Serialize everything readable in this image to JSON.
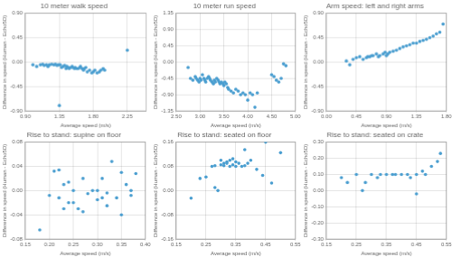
{
  "chart_data": [
    {
      "type": "scatter",
      "title": "10 meter walk speed",
      "xlabel": "Average speed (m/s)",
      "ylabel": "Difference in speed (Human - Echo5D)",
      "color": "#4A9ED0",
      "grid": true,
      "xlim": [
        0.9,
        2.5
      ],
      "ylim": [
        -0.9,
        0.9
      ],
      "xticks": [
        {
          "value": 0.9,
          "label": "0.90"
        },
        1.35,
        {
          "value": 1.8,
          "label": "1.80"
        },
        2.25
      ],
      "yticks": [
        {
          "value": -0.9,
          "label": "-0.90"
        },
        -0.45,
        {
          "value": 0,
          "label": "0.00"
        },
        0.45,
        {
          "value": 0.9,
          "label": "0.90"
        }
      ],
      "x": [
        1.0,
        1.05,
        1.1,
        1.13,
        1.15,
        1.18,
        1.2,
        1.22,
        1.25,
        1.28,
        1.3,
        1.32,
        1.34,
        1.36,
        1.38,
        1.4,
        1.42,
        1.44,
        1.45,
        1.47,
        1.48,
        1.5,
        1.52,
        1.53,
        1.55,
        1.56,
        1.58,
        1.6,
        1.62,
        1.63,
        1.65,
        1.67,
        1.68,
        1.7,
        1.72,
        1.75,
        1.78,
        1.8,
        1.82,
        1.85,
        1.88,
        1.9,
        1.93,
        1.95,
        1.35,
        2.25
      ],
      "values": [
        -0.05,
        -0.08,
        -0.05,
        -0.04,
        -0.06,
        -0.05,
        -0.08,
        -0.05,
        -0.04,
        -0.05,
        -0.04,
        -0.06,
        -0.05,
        -0.05,
        -0.1,
        -0.08,
        -0.06,
        -0.12,
        -0.08,
        -0.1,
        -0.12,
        -0.1,
        -0.08,
        -0.1,
        -0.12,
        -0.1,
        -0.12,
        -0.12,
        -0.1,
        -0.08,
        -0.12,
        -0.15,
        -0.12,
        -0.1,
        -0.18,
        -0.15,
        -0.2,
        -0.18,
        -0.15,
        -0.2,
        -0.18,
        -0.15,
        -0.12,
        -0.15,
        -0.8,
        0.22
      ]
    },
    {
      "type": "scatter",
      "title": "10 meter run speed",
      "xlabel": "Average speed (m/s)",
      "ylabel": "Difference in speed (Human - Echo5D)",
      "color": "#4A9ED0",
      "grid": true,
      "xlim": [
        2.5,
        5.0
      ],
      "ylim": [
        -1.35,
        1.35
      ],
      "xticks": [
        {
          "value": 2.5,
          "label": "2.50"
        },
        {
          "value": 3,
          "label": "3.00"
        },
        {
          "value": 3.5,
          "label": "3.50"
        },
        {
          "value": 4,
          "label": "4.00"
        },
        {
          "value": 4.5,
          "label": "4.50"
        },
        {
          "value": 5,
          "label": "5.00"
        }
      ],
      "yticks": [
        -1.35,
        {
          "value": -0.9,
          "label": "-0.90"
        },
        -0.45,
        {
          "value": 0,
          "label": "0.00"
        },
        0.45,
        {
          "value": 0.9,
          "label": "0.90"
        },
        1.35
      ],
      "x": [
        2.75,
        2.8,
        2.85,
        2.9,
        2.92,
        2.95,
        2.98,
        3.0,
        3.02,
        3.05,
        3.08,
        3.1,
        3.12,
        3.15,
        3.18,
        3.2,
        3.22,
        3.25,
        3.28,
        3.3,
        3.32,
        3.35,
        3.38,
        3.4,
        3.42,
        3.45,
        3.48,
        3.5,
        3.52,
        3.55,
        3.58,
        3.6,
        3.65,
        3.7,
        3.75,
        3.8,
        3.85,
        3.9,
        3.95,
        4.0,
        4.05,
        4.1,
        4.15,
        4.2,
        4.5,
        4.55,
        4.6,
        4.65,
        4.7,
        4.75,
        4.8
      ],
      "values": [
        -0.15,
        -0.45,
        -0.5,
        -0.4,
        -0.45,
        -0.5,
        -0.55,
        -0.45,
        -0.5,
        -0.35,
        -0.45,
        -0.5,
        -0.55,
        -0.45,
        -0.4,
        -0.45,
        -0.5,
        -0.55,
        -0.6,
        -0.5,
        -0.55,
        -0.45,
        -0.5,
        -0.55,
        -0.6,
        -0.55,
        -0.6,
        -0.65,
        -0.55,
        -0.6,
        -0.7,
        -0.75,
        -0.8,
        -0.85,
        -0.75,
        -0.8,
        -0.9,
        -0.85,
        -0.9,
        -1.05,
        -0.85,
        -0.9,
        -1.25,
        -0.85,
        -0.35,
        -0.4,
        -0.5,
        -0.55,
        -0.45,
        -0.05,
        -0.1
      ]
    },
    {
      "type": "scatter",
      "title": "Arm speed: left and right arms",
      "xlabel": "Average speed (m/s)",
      "ylabel": "Difference in speed (Human - Echo5D)",
      "color": "#4A9ED0",
      "grid": true,
      "xlim": [
        0.0,
        1.8
      ],
      "ylim": [
        -0.9,
        0.9
      ],
      "xticks": [
        {
          "value": 0,
          "label": "0.00"
        },
        0.45,
        {
          "value": 0.9,
          "label": "0.90"
        },
        1.35,
        {
          "value": 1.8,
          "label": "1.80"
        }
      ],
      "yticks": [
        {
          "value": -0.9,
          "label": "-0.90"
        },
        -0.45,
        {
          "value": 0,
          "label": "0.00"
        },
        0.45,
        {
          "value": 0.9,
          "label": "0.90"
        }
      ],
      "x": [
        0.3,
        0.35,
        0.4,
        0.45,
        0.5,
        0.55,
        0.6,
        0.62,
        0.65,
        0.68,
        0.7,
        0.75,
        0.78,
        0.8,
        0.85,
        0.88,
        0.9,
        0.92,
        0.95,
        1.0,
        1.05,
        1.1,
        1.15,
        1.2,
        1.25,
        1.3,
        1.35,
        1.4,
        1.45,
        1.5,
        1.55,
        1.6,
        1.65,
        1.7,
        1.75
      ],
      "values": [
        0.02,
        -0.05,
        0.05,
        0.08,
        0.1,
        0.05,
        0.08,
        0.1,
        0.1,
        0.12,
        0.12,
        0.15,
        0.1,
        0.12,
        0.15,
        0.18,
        0.12,
        0.15,
        0.18,
        0.2,
        0.22,
        0.25,
        0.28,
        0.3,
        0.32,
        0.35,
        0.35,
        0.38,
        0.4,
        0.42,
        0.45,
        0.48,
        0.52,
        0.55,
        0.7
      ]
    },
    {
      "type": "scatter",
      "title": "Rise to stand: supine on floor",
      "xlabel": "Average speed (m/s)",
      "ylabel": "Difference in speed (Human - Echo5D)",
      "color": "#4A9ED0",
      "grid": true,
      "xlim": [
        0.15,
        0.4
      ],
      "ylim": [
        -0.08,
        0.08
      ],
      "xticks": [
        0.15,
        {
          "value": 0.2,
          "label": "0.20"
        },
        0.25,
        {
          "value": 0.3,
          "label": "0.30"
        },
        0.35,
        {
          "value": 0.4,
          "label": "0.40"
        }
      ],
      "yticks": [
        -0.08,
        -0.04,
        {
          "value": 0,
          "label": "0.00"
        },
        0.04,
        0.08
      ],
      "x": [
        0.18,
        0.2,
        0.21,
        0.22,
        0.22,
        0.23,
        0.23,
        0.24,
        0.24,
        0.25,
        0.25,
        0.26,
        0.27,
        0.27,
        0.28,
        0.29,
        0.3,
        0.3,
        0.31,
        0.31,
        0.32,
        0.32,
        0.33,
        0.34,
        0.35,
        0.35,
        0.36,
        0.37,
        0.37,
        0.38
      ],
      "values": [
        -0.065,
        -0.008,
        0.032,
        0.034,
        -0.012,
        0.01,
        -0.03,
        -0.02,
        0.014,
        0.0,
        -0.02,
        -0.03,
        0.02,
        -0.035,
        -0.005,
        0.0,
        -0.015,
        0.0,
        0.02,
        -0.012,
        -0.004,
        -0.025,
        0.048,
        -0.012,
        0.03,
        -0.04,
        0.01,
        0.0,
        -0.008,
        0.028
      ]
    },
    {
      "type": "scatter",
      "title": "Rise to stand: seated on floor",
      "xlabel": "Average speed (m/s)",
      "ylabel": "Difference in speed (Human - Echo5D)",
      "color": "#4A9ED0",
      "grid": true,
      "xlim": [
        0.15,
        0.55
      ],
      "ylim": [
        -0.16,
        0.16
      ],
      "xticks": [
        0.15,
        0.25,
        0.35,
        0.45,
        0.55
      ],
      "yticks": [
        -0.16,
        -0.08,
        {
          "value": 0,
          "label": "0.00"
        },
        0.08,
        0.16
      ],
      "x": [
        0.2,
        0.23,
        0.25,
        0.27,
        0.28,
        0.28,
        0.29,
        0.3,
        0.3,
        0.31,
        0.31,
        0.32,
        0.32,
        0.33,
        0.33,
        0.34,
        0.34,
        0.35,
        0.35,
        0.36,
        0.37,
        0.38,
        0.38,
        0.39,
        0.4,
        0.42,
        0.44,
        0.45,
        0.47,
        0.5
      ],
      "values": [
        -0.025,
        0.04,
        0.045,
        0.08,
        0.082,
        0.01,
        0.0,
        0.085,
        0.1,
        0.09,
        0.082,
        0.095,
        0.09,
        0.1,
        0.08,
        0.105,
        0.085,
        0.08,
        0.095,
        0.09,
        0.08,
        0.082,
        0.135,
        0.09,
        0.1,
        0.07,
        0.05,
        0.16,
        0.025,
        0.125
      ]
    },
    {
      "type": "scatter",
      "title": "Rise to stand: seated on crate",
      "xlabel": "Average speed (m/s)",
      "ylabel": "Difference in speed (Human - Echo5D)",
      "color": "#4A9ED0",
      "grid": true,
      "xlim": [
        0.15,
        0.55
      ],
      "ylim": [
        -0.3,
        0.3
      ],
      "xticks": [
        0.15,
        0.25,
        0.35,
        0.45,
        0.55
      ],
      "yticks": [
        {
          "value": -0.3,
          "label": "-0.30"
        },
        {
          "value": -0.2,
          "label": "-0.20"
        },
        {
          "value": -0.1,
          "label": "-0.10"
        },
        {
          "value": 0,
          "label": "0.00"
        },
        {
          "value": 0.1,
          "label": "0.10"
        },
        {
          "value": 0.2,
          "label": "0.20"
        },
        {
          "value": 0.3,
          "label": "0.30"
        }
      ],
      "x": [
        0.2,
        0.22,
        0.25,
        0.27,
        0.28,
        0.3,
        0.32,
        0.33,
        0.35,
        0.37,
        0.38,
        0.4,
        0.42,
        0.43,
        0.45,
        0.45,
        0.47,
        0.48,
        0.5,
        0.52,
        0.53
      ],
      "values": [
        0.08,
        0.05,
        0.1,
        0.0,
        0.05,
        0.1,
        0.08,
        0.1,
        0.1,
        0.1,
        0.1,
        0.1,
        0.1,
        0.08,
        0.1,
        -0.02,
        0.12,
        0.1,
        0.15,
        0.18,
        0.23
      ]
    }
  ]
}
